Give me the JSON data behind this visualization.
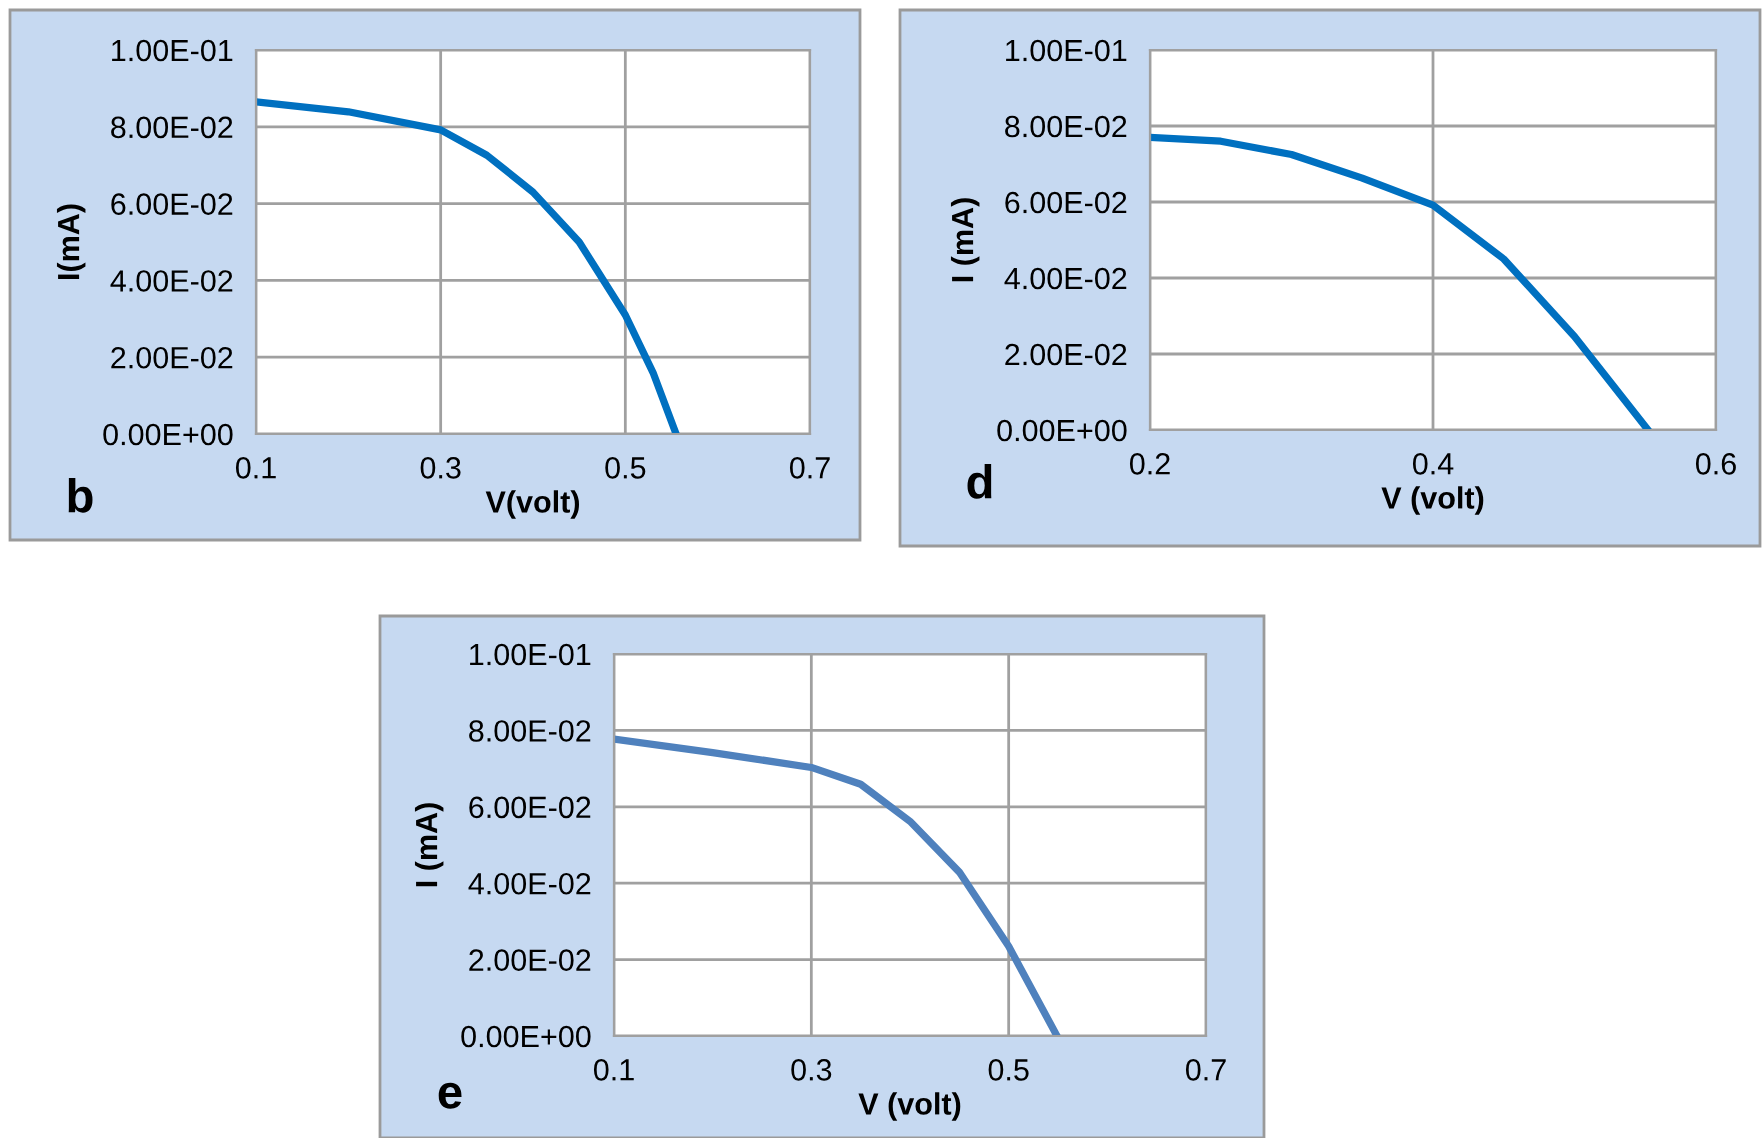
{
  "chart_data": [
    {
      "type": "line",
      "xlabel": "V(volt)",
      "ylabel": "I(mA)",
      "annotations": [
        "b"
      ],
      "grid": true,
      "legend": false,
      "marker": "none",
      "line_style": "solid",
      "x": [
        0.1,
        0.2,
        0.3,
        0.35,
        0.4,
        0.45,
        0.5,
        0.53,
        0.555
      ],
      "series": [
        {
          "color": "#0070c0",
          "values": [
            0.0865,
            0.0839,
            0.0792,
            0.0726,
            0.063,
            0.05,
            0.031,
            0.016,
            0
          ]
        }
      ],
      "xlim": [
        0.1,
        0.7
      ],
      "xticks": [
        0.1,
        0.3,
        0.5,
        0.7
      ],
      "ylim": [
        0,
        0.1
      ],
      "yticks": [
        {
          "value": 0,
          "label": "0.00E+00"
        },
        {
          "value": 0.02,
          "label": "2.00E-02"
        },
        {
          "value": 0.04,
          "label": "4.00E-02"
        },
        {
          "value": 0.06,
          "label": "6.00E-02"
        },
        {
          "value": 0.08,
          "label": "8.00E-02"
        },
        {
          "value": 0.1,
          "label": "1.00E-01"
        }
      ]
    },
    {
      "type": "line",
      "xlabel": "V (volt)",
      "ylabel": "I (mA)",
      "annotations": [
        "d"
      ],
      "grid": true,
      "legend": false,
      "marker": "none",
      "line_style": "solid",
      "x": [
        0.2,
        0.25,
        0.3,
        0.35,
        0.4,
        0.45,
        0.5,
        0.552
      ],
      "series": [
        {
          "color": "#0070c0",
          "values": [
            0.077,
            0.076,
            0.0725,
            0.0663,
            0.0592,
            0.045,
            0.0246,
            0
          ]
        }
      ],
      "xlim": [
        0.2,
        0.6
      ],
      "xticks": [
        0.2,
        0.4,
        0.6
      ],
      "ylim": [
        0,
        0.1
      ],
      "yticks": [
        {
          "value": 0,
          "label": "0.00E+00"
        },
        {
          "value": 0.02,
          "label": "2.00E-02"
        },
        {
          "value": 0.04,
          "label": "4.00E-02"
        },
        {
          "value": 0.06,
          "label": "6.00E-02"
        },
        {
          "value": 0.08,
          "label": "8.00E-02"
        },
        {
          "value": 0.1,
          "label": "1.00E-01"
        }
      ]
    },
    {
      "type": "line",
      "xlabel": "V (volt)",
      "ylabel": "I (mA)",
      "annotations": [
        "e"
      ],
      "grid": true,
      "legend": false,
      "marker": "none",
      "line_style": "solid",
      "x": [
        0.1,
        0.2,
        0.3,
        0.35,
        0.4,
        0.45,
        0.5,
        0.549
      ],
      "series": [
        {
          "color": "#4f81bd",
          "values": [
            0.0777,
            0.0742,
            0.0703,
            0.0659,
            0.0562,
            0.0429,
            0.0235,
            0
          ]
        }
      ],
      "xlim": [
        0.1,
        0.7
      ],
      "xticks": [
        0.1,
        0.3,
        0.5,
        0.7
      ],
      "ylim": [
        0,
        0.1
      ],
      "yticks": [
        {
          "value": 0,
          "label": "0.00E+00"
        },
        {
          "value": 0.02,
          "label": "2.00E-02"
        },
        {
          "value": 0.04,
          "label": "4.00E-02"
        },
        {
          "value": 0.06,
          "label": "6.00E-02"
        },
        {
          "value": 0.08,
          "label": "8.00E-02"
        },
        {
          "value": 0.1,
          "label": "1.00E-01"
        }
      ]
    }
  ]
}
